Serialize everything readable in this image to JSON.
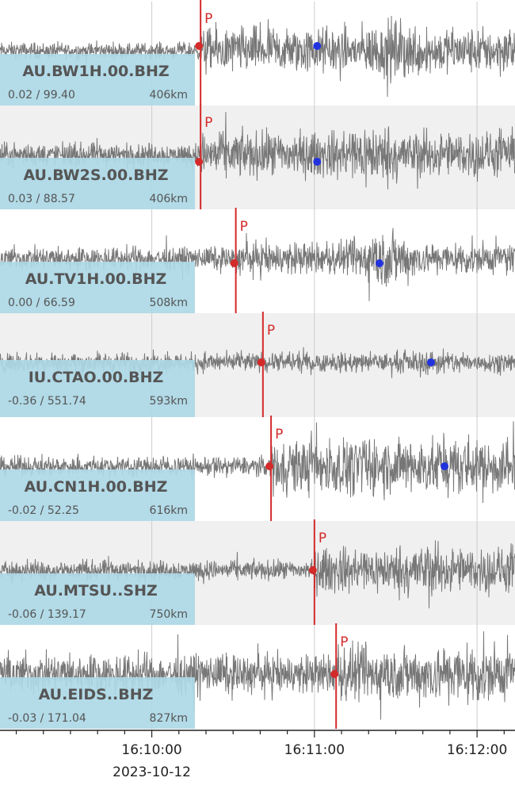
{
  "chart_data": {
    "type": "line",
    "title": "",
    "xlabel": "",
    "ylabel": "",
    "x_axis": {
      "start_time": "16:09:04",
      "end_time": "16:12:14",
      "major_ticks": [
        {
          "time": "16:10:00",
          "label": "16:10:00"
        },
        {
          "time": "16:11:00",
          "label": "16:11:00"
        },
        {
          "time": "16:12:00",
          "label": "16:12:00"
        }
      ],
      "date_label": "2023-10-12"
    },
    "grid": true,
    "colors": {
      "trace": "#777777",
      "pick": "#d42a2a",
      "secondary_marker": "#2233dd",
      "label_bg": "#add8e6",
      "band_alt": "#f0f0f0"
    },
    "pick_text": "P",
    "series": [
      {
        "name": "AU.BW1H.00.BHZ",
        "min_max": "0.02 / 99.40",
        "distance": "406km",
        "p_time": "16:10:18",
        "marker_time": "16:11:01",
        "onset_amp": 0.1,
        "marker_amp": 0.1,
        "pre_amp": 0.25,
        "post_amp": 0.7,
        "burst_time": "16:11:30",
        "burst_amp": 1.0
      },
      {
        "name": "AU.BW2S.00.BHZ",
        "min_max": "0.03 / 88.57",
        "distance": "406km",
        "p_time": "16:10:18",
        "marker_time": "16:11:01",
        "onset_amp": -0.15,
        "marker_amp": -0.15,
        "pre_amp": 0.35,
        "post_amp": 0.7,
        "burst_time": "16:11:20",
        "burst_amp": 1.0
      },
      {
        "name": "AU.TV1H.00.BHZ",
        "min_max": "0.00 / 66.59",
        "distance": "508km",
        "p_time": "16:10:31",
        "marker_time": "16:11:24",
        "onset_amp": -0.1,
        "marker_amp": -0.1,
        "pre_amp": 0.35,
        "post_amp": 0.5,
        "burst_time": "16:11:26",
        "burst_amp": 1.0
      },
      {
        "name": "IU.CTAO.00.BHZ",
        "min_max": "-0.36 / 551.74",
        "distance": "593km",
        "p_time": "16:10:41",
        "marker_time": "16:11:43",
        "onset_amp": 0.0,
        "marker_amp": 0.0,
        "pre_amp": 0.3,
        "post_amp": 0.3,
        "burst_time": "16:11:45",
        "burst_amp": 0.4
      },
      {
        "name": "AU.CN1H.00.BHZ",
        "min_max": "-0.02 / 52.25",
        "distance": "616km",
        "p_time": "16:10:44",
        "marker_time": "16:11:48",
        "onset_amp": 0.0,
        "marker_amp": 0.0,
        "pre_amp": 0.3,
        "post_amp": 0.85,
        "burst_time": "16:11:20",
        "burst_amp": 0.9
      },
      {
        "name": "AU.MTSU..SHZ",
        "min_max": "-0.06 / 139.17",
        "distance": "750km",
        "p_time": "16:11:00",
        "marker_time": "",
        "onset_amp": 0.0,
        "marker_amp": 0.0,
        "pre_amp": 0.3,
        "post_amp": 0.7,
        "burst_time": "16:11:40",
        "burst_amp": 0.8
      },
      {
        "name": "AU.EIDS..BHZ",
        "min_max": "-0.03 / 171.04",
        "distance": "827km",
        "p_time": "16:11:08",
        "marker_time": "",
        "onset_amp": 0.0,
        "marker_amp": 0.0,
        "pre_amp": 0.6,
        "post_amp": 0.85,
        "burst_time": "16:11:56",
        "burst_amp": 1.0
      }
    ]
  }
}
